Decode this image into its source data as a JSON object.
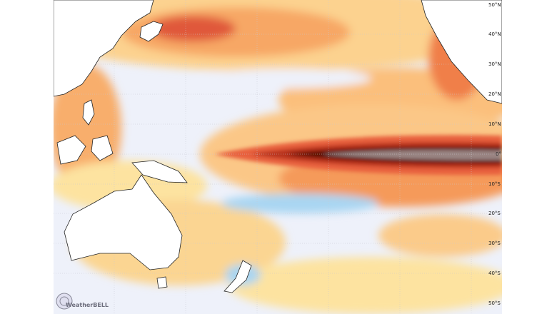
{
  "map": {
    "lat_labels": [
      "50°N",
      "40°N",
      "30°N",
      "20°N",
      "10°N",
      "0°",
      "10°S",
      "20°S",
      "30°S",
      "40°S",
      "50°S"
    ],
    "watermark": "WeatherBELL"
  }
}
